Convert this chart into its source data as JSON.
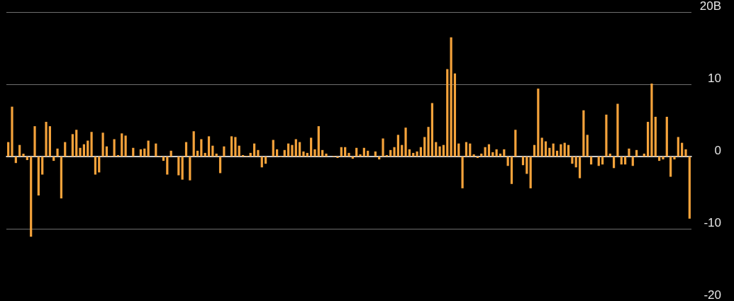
{
  "chart_data": {
    "type": "bar",
    "categories": [
      null,
      null,
      null,
      null,
      null,
      null,
      null,
      null,
      null,
      null,
      null,
      null,
      null,
      null,
      null,
      null,
      null,
      null,
      null,
      null,
      null,
      null,
      null,
      null,
      null,
      null,
      null,
      null,
      null,
      null,
      null,
      null,
      null,
      null,
      null,
      null,
      null,
      null,
      null,
      null,
      null,
      null,
      null,
      null,
      null,
      null,
      null,
      null,
      null,
      null,
      null,
      null,
      null,
      null,
      null,
      null,
      null,
      null,
      null,
      null,
      null,
      null,
      null,
      null,
      null,
      null,
      null,
      null,
      null,
      null,
      null,
      null,
      null,
      null,
      null,
      null,
      null,
      null,
      null,
      null,
      null,
      null,
      null,
      null,
      null,
      null,
      null,
      null,
      null,
      null,
      null,
      null,
      null,
      null,
      null,
      null,
      null,
      null,
      null,
      null,
      null,
      null,
      null,
      null,
      null,
      null,
      null,
      null,
      null,
      null,
      null,
      null,
      null,
      null,
      null,
      null,
      null,
      null,
      null,
      null,
      null,
      null,
      null,
      null,
      null,
      null,
      null,
      null,
      null,
      null,
      null,
      null,
      null,
      null,
      null,
      null,
      null,
      null,
      null,
      null,
      null,
      null,
      null,
      null,
      null,
      null,
      null,
      null,
      null,
      null,
      null,
      null,
      null,
      null,
      null,
      null,
      null,
      null,
      null,
      null,
      null,
      null,
      null,
      null,
      null,
      null,
      null,
      null,
      null,
      null,
      null,
      null,
      null,
      null,
      null,
      null,
      null,
      null,
      null,
      null,
      null
    ],
    "values": [
      2.0,
      6.9,
      -0.9,
      1.6,
      0.4,
      -0.5,
      -11.1,
      4.2,
      -5.4,
      -2.5,
      4.8,
      4.2,
      -0.6,
      1.1,
      -5.8,
      2.0,
      0.1,
      3.1,
      3.7,
      1.2,
      1.7,
      2.2,
      3.4,
      -2.5,
      -2.2,
      3.3,
      1.4,
      0.1,
      2.4,
      0.2,
      3.2,
      2.9,
      0,
      1.2,
      0,
      1.0,
      1.1,
      2.2,
      0,
      1.8,
      0.1,
      -0.6,
      -2.5,
      0.8,
      0,
      -2.6,
      -3.2,
      2.0,
      -3.3,
      3.5,
      0.8,
      2.4,
      0.5,
      2.8,
      1.5,
      0.4,
      -2.3,
      1.4,
      0,
      2.8,
      2.7,
      1.5,
      0.2,
      0.1,
      0.5,
      1.8,
      0.9,
      -1.5,
      -1.0,
      0,
      2.3,
      1.0,
      -0.1,
      0.9,
      1.8,
      1.6,
      2.4,
      2.0,
      0.7,
      0.5,
      2.6,
      1.0,
      4.2,
      0.9,
      0.4,
      0,
      0.1,
      -0.2,
      1.3,
      1.3,
      0.5,
      -0.3,
      1.2,
      0.3,
      1.2,
      0.8,
      0,
      0.7,
      -0.4,
      2.5,
      0.2,
      0.9,
      1.3,
      3.0,
      1.6,
      4.0,
      1.0,
      0.5,
      0.7,
      1.3,
      2.7,
      4.1,
      7.4,
      2.0,
      1.4,
      1.6,
      12.1,
      16.5,
      11.5,
      1.8,
      -4.4,
      2.0,
      1.8,
      0.3,
      -0.2,
      0.4,
      1.3,
      1.7,
      0.6,
      1.0,
      0.4,
      1.0,
      -1.3,
      -3.8,
      3.7,
      0,
      -1.2,
      -2.4,
      -4.4,
      1.6,
      9.4,
      2.6,
      2.1,
      1.2,
      1.8,
      0.8,
      1.7,
      1.9,
      1.6,
      -1.0,
      -1.5,
      -3.0,
      6.4,
      3.0,
      -1.1,
      0,
      -1.3,
      -1.1,
      5.8,
      0.4,
      -1.6,
      7.3,
      -1.1,
      -1.1,
      1.1,
      -1.3,
      0.9,
      0,
      0.4,
      4.8,
      10.1,
      5.5,
      -0.6,
      -0.4,
      5.5,
      -2.8,
      -0.4,
      2.7,
      1.9,
      1.0,
      -8.6
    ],
    "color": "#f5a33b",
    "ylim": [
      -20,
      20
    ],
    "yticks": [
      -20,
      -10,
      0,
      10,
      {
        "value": 20,
        "label": "20B"
      }
    ],
    "grid": "y",
    "tick_labels": "y"
  }
}
